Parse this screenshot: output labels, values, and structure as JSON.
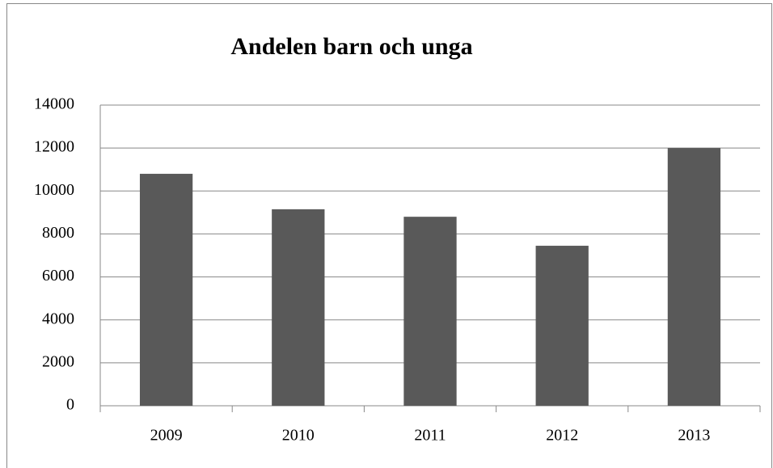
{
  "chart_data": {
    "type": "bar",
    "title": "Andelen barn och unga",
    "categories": [
      "2009",
      "2010",
      "2011",
      "2012",
      "2013"
    ],
    "values": [
      10800,
      9150,
      8800,
      7450,
      12000
    ],
    "color": "#595959",
    "ylim": [
      0,
      14000
    ],
    "yticks": [
      0,
      2000,
      4000,
      6000,
      8000,
      10000,
      12000,
      14000
    ],
    "grid": true
  }
}
